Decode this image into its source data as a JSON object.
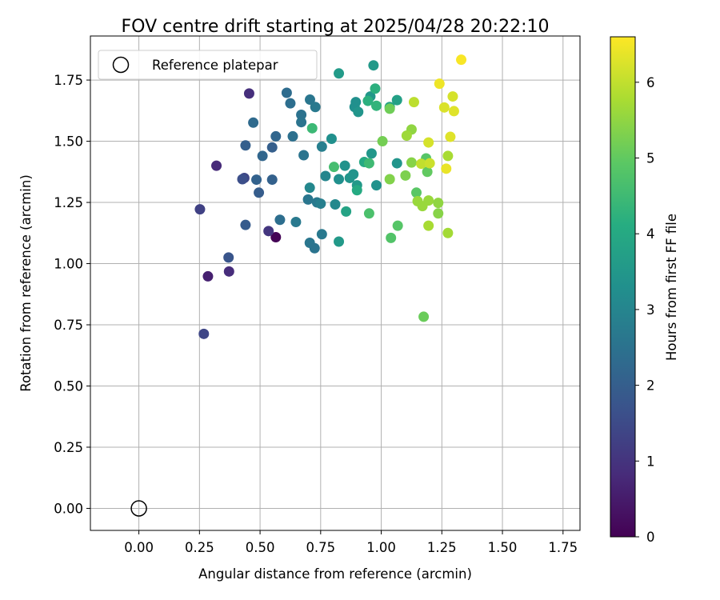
{
  "chart_data": {
    "type": "scatter",
    "title": "FOV centre drift starting at 2025/04/28 20:22:10",
    "xlabel": "Angular distance from reference (arcmin)",
    "ylabel": "Rotation from reference (arcmin)",
    "xlim": [
      -0.2,
      1.82
    ],
    "ylim": [
      -0.09,
      1.93
    ],
    "x_ticks": [
      0.0,
      0.25,
      0.5,
      0.75,
      1.0,
      1.25,
      1.5,
      1.75
    ],
    "x_tick_labels": [
      "0.00",
      "0.25",
      "0.50",
      "0.75",
      "1.00",
      "1.25",
      "1.50",
      "1.75"
    ],
    "y_ticks": [
      0.0,
      0.25,
      0.5,
      0.75,
      1.0,
      1.25,
      1.5,
      1.75
    ],
    "y_tick_labels": [
      "0.00",
      "0.25",
      "0.50",
      "0.75",
      "1.00",
      "1.25",
      "1.50",
      "1.75"
    ],
    "grid": true,
    "legend": {
      "position": "top-left",
      "entries": [
        "Reference platepar"
      ]
    },
    "reference_point": {
      "x": 0.0,
      "y": 0.0,
      "label": "Reference platepar"
    },
    "colorbar": {
      "label": "Hours from first FF file",
      "colormap": "viridis",
      "range": [
        0,
        6.6
      ],
      "ticks": [
        0,
        1,
        2,
        3,
        4,
        5,
        6
      ],
      "tick_labels": [
        "0",
        "1",
        "2",
        "3",
        "4",
        "5",
        "6"
      ]
    },
    "points": [
      [
        0.565,
        1.108,
        0.05
      ],
      [
        0.285,
        0.948,
        0.6
      ],
      [
        0.455,
        1.695,
        0.9
      ],
      [
        0.32,
        1.4,
        0.8
      ],
      [
        0.372,
        0.968,
        0.85
      ],
      [
        0.535,
        1.133,
        1.05
      ],
      [
        0.252,
        1.222,
        1.3
      ],
      [
        0.268,
        0.713,
        1.4
      ],
      [
        0.435,
        1.35,
        1.4
      ],
      [
        0.427,
        1.345,
        1.6
      ],
      [
        0.37,
        1.025,
        1.75
      ],
      [
        0.44,
        1.158,
        1.9
      ],
      [
        0.495,
        1.29,
        1.95
      ],
      [
        0.44,
        1.483,
        2.0
      ],
      [
        0.55,
        1.475,
        2.0
      ],
      [
        0.55,
        1.343,
        2.05
      ],
      [
        0.485,
        1.343,
        2.1
      ],
      [
        0.51,
        1.44,
        2.2
      ],
      [
        0.472,
        1.576,
        2.3
      ],
      [
        0.565,
        1.52,
        2.2
      ],
      [
        0.582,
        1.179,
        2.4
      ],
      [
        0.61,
        1.698,
        2.35
      ],
      [
        0.625,
        1.655,
        2.4
      ],
      [
        0.635,
        1.52,
        2.45
      ],
      [
        0.67,
        1.608,
        2.5
      ],
      [
        0.67,
        1.578,
        2.55
      ],
      [
        0.68,
        1.443,
        2.55
      ],
      [
        0.706,
        1.67,
        2.6
      ],
      [
        0.728,
        1.64,
        2.7
      ],
      [
        0.648,
        1.17,
        2.7
      ],
      [
        0.698,
        1.262,
        2.6
      ],
      [
        0.735,
        1.25,
        2.7
      ],
      [
        0.75,
        1.245,
        2.85
      ],
      [
        0.705,
        1.085,
        2.6
      ],
      [
        0.725,
        1.063,
        2.55
      ],
      [
        0.755,
        1.12,
        2.7
      ],
      [
        0.755,
        1.478,
        2.85
      ],
      [
        0.77,
        1.358,
        3.0
      ],
      [
        0.705,
        1.31,
        3.05
      ],
      [
        0.795,
        1.51,
        3.3
      ],
      [
        0.81,
        1.242,
        3.1
      ],
      [
        0.825,
        1.345,
        3.3
      ],
      [
        0.85,
        1.4,
        3.35
      ],
      [
        0.87,
        1.35,
        3.45
      ],
      [
        0.885,
        1.365,
        3.4
      ],
      [
        0.89,
        1.64,
        3.3
      ],
      [
        0.895,
        1.66,
        3.3
      ],
      [
        0.905,
        1.62,
        3.45
      ],
      [
        0.9,
        1.32,
        3.55
      ],
      [
        0.825,
        1.777,
        3.6
      ],
      [
        0.825,
        1.09,
        3.55
      ],
      [
        0.968,
        1.81,
        3.55
      ],
      [
        0.955,
        1.683,
        3.5
      ],
      [
        0.96,
        1.45,
        3.5
      ],
      [
        0.98,
        1.32,
        3.35
      ],
      [
        1.065,
        1.41,
        3.45
      ],
      [
        1.065,
        1.668,
        3.75
      ],
      [
        1.035,
        1.64,
        3.8
      ],
      [
        0.93,
        1.415,
        4.0
      ],
      [
        0.855,
        1.213,
        3.85
      ],
      [
        0.9,
        1.3,
        4.05
      ],
      [
        0.945,
        1.665,
        4.2
      ],
      [
        0.98,
        1.645,
        4.3
      ],
      [
        0.975,
        1.715,
        4.2
      ],
      [
        0.95,
        1.41,
        4.5
      ],
      [
        0.805,
        1.395,
        4.6
      ],
      [
        0.715,
        1.553,
        4.45
      ],
      [
        0.95,
        1.205,
        4.7
      ],
      [
        1.04,
        1.105,
        4.8
      ],
      [
        1.068,
        1.155,
        4.85
      ],
      [
        1.145,
        1.29,
        4.9
      ],
      [
        1.185,
        1.43,
        4.85
      ],
      [
        1.19,
        1.375,
        5.0
      ],
      [
        1.175,
        0.783,
        5.1
      ],
      [
        1.005,
        1.5,
        5.2
      ],
      [
        1.035,
        1.633,
        5.15
      ],
      [
        1.035,
        1.345,
        5.35
      ],
      [
        1.1,
        1.36,
        5.3
      ],
      [
        1.125,
        1.413,
        5.4
      ],
      [
        1.125,
        1.548,
        5.5
      ],
      [
        1.105,
        1.523,
        5.65
      ],
      [
        1.135,
        1.66,
        5.95
      ],
      [
        1.15,
        1.255,
        5.6
      ],
      [
        1.17,
        1.235,
        5.6
      ],
      [
        1.195,
        1.258,
        5.6
      ],
      [
        1.195,
        1.155,
        5.75
      ],
      [
        1.235,
        1.248,
        5.5
      ],
      [
        1.235,
        1.205,
        5.4
      ],
      [
        1.275,
        1.125,
        5.7
      ],
      [
        1.275,
        1.44,
        5.75
      ],
      [
        1.165,
        1.408,
        6.0
      ],
      [
        1.2,
        1.41,
        6.1
      ],
      [
        1.195,
        1.495,
        6.2
      ],
      [
        1.26,
        1.638,
        6.25
      ],
      [
        1.285,
        1.518,
        6.3
      ],
      [
        1.295,
        1.683,
        6.2
      ],
      [
        1.3,
        1.623,
        6.3
      ],
      [
        1.268,
        1.388,
        6.4
      ],
      [
        1.24,
        1.735,
        6.45
      ],
      [
        1.33,
        1.833,
        6.55
      ]
    ]
  }
}
